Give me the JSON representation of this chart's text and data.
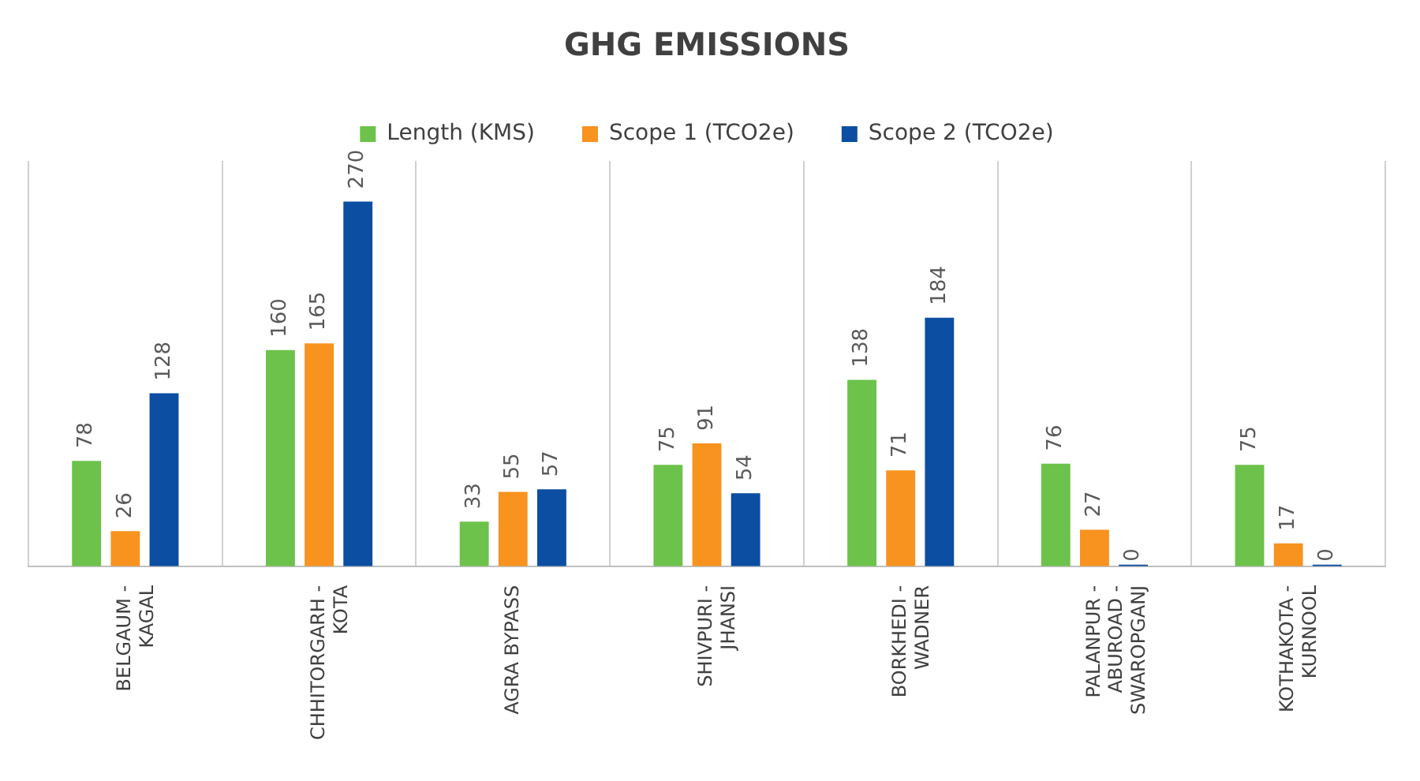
{
  "chart_data": {
    "type": "bar",
    "title": "GHG EMISSIONS",
    "categories": [
      "BELGAUM - KAGAL",
      "CHHITORGARH - KOTA",
      "AGRA BYPASS",
      "SHIVPURI - JHANSI",
      "BORKHEDI - WADNER",
      "PALANPUR - ABUROAD - SWAROPGANJ",
      "KOTHAKOTA - KURNOOL"
    ],
    "series": [
      {
        "name": "Length (KMS)",
        "color": "#6cc24a",
        "values": [
          78,
          160,
          33,
          75,
          138,
          76,
          75
        ]
      },
      {
        "name": "Scope 1 (TCO2e)",
        "color": "#f7931e",
        "values": [
          26,
          165,
          55,
          91,
          71,
          27,
          17
        ]
      },
      {
        "name": "Scope 2 (TCO2e)",
        "color": "#0b4ea2",
        "values": [
          128,
          270,
          57,
          54,
          184,
          0,
          0
        ]
      }
    ],
    "data_labels": true,
    "grid": "x",
    "legend": "top"
  }
}
